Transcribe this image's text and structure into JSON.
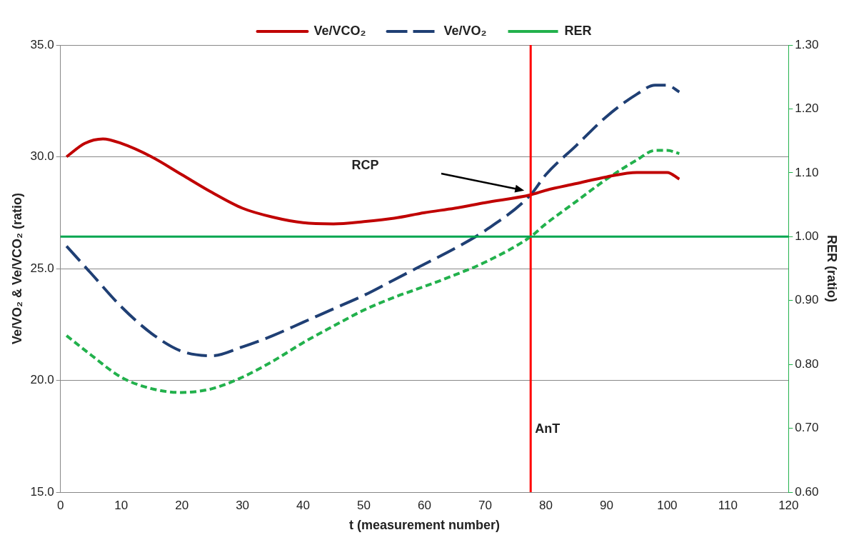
{
  "chart_data": {
    "type": "line",
    "xlabel": "t (measurement number)",
    "ylabel": "Ve/VO₂ & Ve/VCO₂ (ratio)",
    "y2label": "RER (ratio)",
    "series": [
      {
        "name": "Ve/VCO₂",
        "color": "#c00000",
        "line_style": "solid",
        "x": [
          1,
          4,
          7,
          10,
          15,
          20,
          25,
          30,
          35,
          40,
          45,
          50,
          55,
          60,
          65,
          70,
          77.5,
          80,
          85,
          90,
          95,
          100,
          102
        ],
        "values": [
          30.0,
          30.6,
          30.8,
          30.6,
          30.0,
          29.2,
          28.4,
          27.7,
          27.3,
          27.05,
          27.0,
          27.1,
          27.25,
          27.5,
          27.7,
          27.95,
          28.3,
          28.5,
          28.8,
          29.1,
          29.3,
          29.3,
          29.0
        ]
      },
      {
        "name": "Ve/VO₂",
        "color": "#1f3f74",
        "line_style": "dashed",
        "x": [
          1,
          5,
          10,
          15,
          20,
          25,
          30,
          35,
          40,
          45,
          50,
          55,
          60,
          65,
          70,
          77.5,
          80,
          85,
          90,
          95,
          98,
          100,
          102
        ],
        "values": [
          26.0,
          24.8,
          23.3,
          22.1,
          21.3,
          21.1,
          21.5,
          22.0,
          22.6,
          23.2,
          23.8,
          24.5,
          25.2,
          25.9,
          26.7,
          28.3,
          29.2,
          30.5,
          31.8,
          32.8,
          33.2,
          33.2,
          32.9
        ]
      },
      {
        "name": "RER",
        "color": "#22b14c",
        "line_style": "dotted",
        "axis": "y2",
        "x": [
          1,
          5,
          10,
          15,
          20,
          25,
          30,
          35,
          40,
          45,
          50,
          55,
          60,
          65,
          70,
          77.5,
          80,
          85,
          90,
          95,
          98,
          100,
          102
        ],
        "values": [
          0.845,
          0.815,
          0.78,
          0.762,
          0.756,
          0.762,
          0.78,
          0.805,
          0.834,
          0.86,
          0.885,
          0.905,
          0.922,
          0.94,
          0.96,
          1.0,
          1.02,
          1.055,
          1.09,
          1.12,
          1.135,
          1.135,
          1.13
        ]
      }
    ],
    "xlim": [
      0,
      120
    ],
    "xticks": [
      0,
      10,
      20,
      30,
      40,
      50,
      60,
      70,
      80,
      90,
      100,
      110,
      120
    ],
    "ylim": [
      15,
      35
    ],
    "yticks": [
      {
        "value": 15,
        "label": "15.0"
      },
      {
        "value": 20,
        "label": "20.0"
      },
      {
        "value": 25,
        "label": "25.0"
      },
      {
        "value": 30,
        "label": "30.0"
      },
      {
        "value": 35,
        "label": "35.0"
      }
    ],
    "y2lim": [
      0.6,
      1.3
    ],
    "y2ticks": [
      {
        "value": 0.6,
        "label": "0.60"
      },
      {
        "value": 0.7,
        "label": "0.70"
      },
      {
        "value": 0.8,
        "label": "0.80"
      },
      {
        "value": 0.9,
        "label": "0.90"
      },
      {
        "value": 1.0,
        "label": "1.00"
      },
      {
        "value": 1.1,
        "label": "1.10"
      },
      {
        "value": 1.2,
        "label": "1.20"
      },
      {
        "value": 1.3,
        "label": "1.30"
      }
    ],
    "ref_lines": [
      {
        "axis": "x",
        "value": 77.5,
        "label": "AnT",
        "color": "#ff0000"
      },
      {
        "axis": "y2",
        "value": 1.0,
        "color": "#00a650"
      }
    ],
    "annotations": [
      "RCP"
    ],
    "grid": "y",
    "legend": "top",
    "marker": "none"
  }
}
